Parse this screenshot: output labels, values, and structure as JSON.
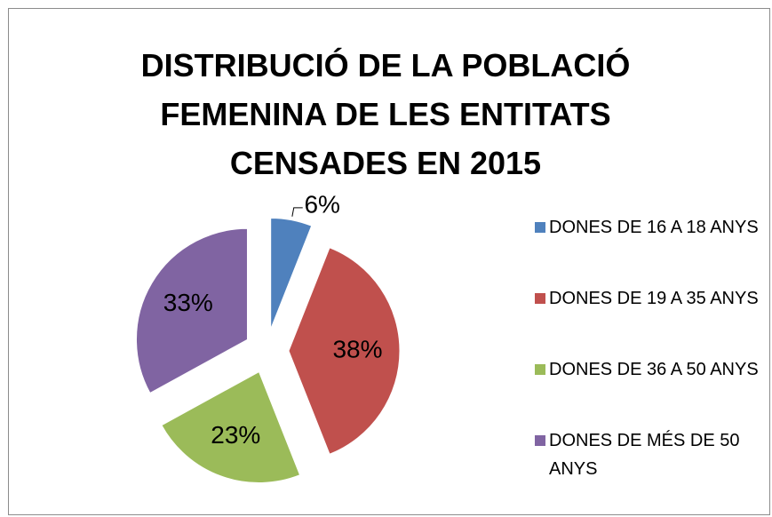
{
  "chart_data": {
    "type": "pie",
    "title": "DISTRIBUCIÓ DE LA POBLACIÓ FEMENINA DE LES ENTITATS CENSADES EN 2015",
    "categories": [
      "DONES DE 16 A 18 ANYS",
      "DONES DE 19 A 35 ANYS",
      "DONES DE 36 A 50 ANYS",
      "DONES DE MÉS DE 50 ANYS"
    ],
    "values": [
      6,
      38,
      23,
      33
    ],
    "value_labels": [
      "6%",
      "38%",
      "23%",
      "33%"
    ],
    "colors": [
      "#4f81bd",
      "#c0504d",
      "#9bbb59",
      "#8064a2"
    ],
    "legend": "right"
  }
}
